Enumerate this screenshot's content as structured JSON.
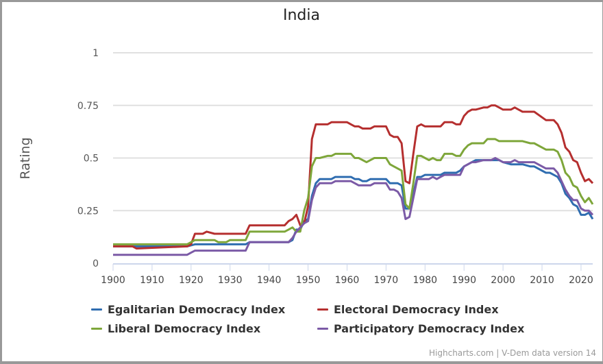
{
  "chart_data": {
    "type": "line",
    "title": "India",
    "xlabel": "",
    "ylabel": "Rating",
    "xlim": [
      1900,
      2023
    ],
    "ylim": [
      0,
      1
    ],
    "x_ticks": [
      "1900",
      "1910",
      "1920",
      "1930",
      "1940",
      "1950",
      "1960",
      "1970",
      "1980",
      "1990",
      "2000",
      "2010",
      "2020"
    ],
    "y_ticks": [
      "0",
      "0.25",
      "0.5",
      "0.75",
      "1"
    ],
    "grid": true,
    "legend_position": "bottom",
    "x": [
      1900,
      1905,
      1906,
      1919,
      1920,
      1921,
      1923,
      1924,
      1926,
      1927,
      1929,
      1930,
      1934,
      1935,
      1944,
      1945,
      1946,
      1947,
      1948,
      1949,
      1950,
      1951,
      1952,
      1953,
      1955,
      1956,
      1957,
      1960,
      1961,
      1962,
      1963,
      1964,
      1965,
      1966,
      1967,
      1970,
      1971,
      1972,
      1973,
      1974,
      1975,
      1976,
      1977,
      1978,
      1979,
      1980,
      1981,
      1982,
      1983,
      1984,
      1985,
      1987,
      1988,
      1989,
      1990,
      1991,
      1992,
      1993,
      1995,
      1996,
      1997,
      1998,
      1999,
      2000,
      2002,
      2003,
      2004,
      2005,
      2007,
      2008,
      2011,
      2012,
      2013,
      2014,
      2015,
      2016,
      2017,
      2018,
      2019,
      2020,
      2021,
      2022,
      2023
    ],
    "series": [
      {
        "name": "Egalitarian Democracy Index",
        "color": "#2f6db0",
        "values": [
          0.08,
          0.08,
          0.08,
          0.08,
          0.085,
          0.09,
          0.09,
          0.09,
          0.09,
          0.09,
          0.09,
          0.09,
          0.09,
          0.1,
          0.1,
          0.1,
          0.11,
          0.16,
          0.16,
          0.2,
          0.21,
          0.32,
          0.38,
          0.4,
          0.4,
          0.4,
          0.41,
          0.41,
          0.41,
          0.4,
          0.4,
          0.39,
          0.39,
          0.4,
          0.4,
          0.4,
          0.38,
          0.38,
          0.38,
          0.37,
          0.26,
          0.26,
          0.33,
          0.41,
          0.41,
          0.42,
          0.42,
          0.42,
          0.42,
          0.42,
          0.43,
          0.43,
          0.43,
          0.44,
          0.46,
          0.47,
          0.48,
          0.49,
          0.49,
          0.49,
          0.49,
          0.49,
          0.49,
          0.48,
          0.47,
          0.47,
          0.47,
          0.47,
          0.46,
          0.46,
          0.43,
          0.43,
          0.42,
          0.41,
          0.38,
          0.33,
          0.31,
          0.28,
          0.27,
          0.23,
          0.23,
          0.24,
          0.21
        ]
      },
      {
        "name": "Electoral Democracy Index",
        "color": "#b52f2f",
        "values": [
          0.08,
          0.08,
          0.07,
          0.08,
          0.09,
          0.14,
          0.14,
          0.15,
          0.14,
          0.14,
          0.14,
          0.14,
          0.14,
          0.18,
          0.18,
          0.2,
          0.21,
          0.23,
          0.18,
          0.19,
          0.27,
          0.59,
          0.66,
          0.66,
          0.66,
          0.67,
          0.67,
          0.67,
          0.66,
          0.65,
          0.65,
          0.64,
          0.64,
          0.64,
          0.65,
          0.65,
          0.61,
          0.6,
          0.6,
          0.57,
          0.39,
          0.38,
          0.52,
          0.65,
          0.66,
          0.65,
          0.65,
          0.65,
          0.65,
          0.65,
          0.67,
          0.67,
          0.66,
          0.66,
          0.7,
          0.72,
          0.73,
          0.73,
          0.74,
          0.74,
          0.75,
          0.75,
          0.74,
          0.73,
          0.73,
          0.74,
          0.73,
          0.72,
          0.72,
          0.72,
          0.68,
          0.68,
          0.68,
          0.66,
          0.62,
          0.55,
          0.53,
          0.49,
          0.48,
          0.43,
          0.39,
          0.4,
          0.38
        ]
      },
      {
        "name": "Liberal Democracy Index",
        "color": "#7ea63a",
        "values": [
          0.09,
          0.09,
          0.09,
          0.09,
          0.1,
          0.11,
          0.11,
          0.11,
          0.11,
          0.1,
          0.1,
          0.11,
          0.11,
          0.15,
          0.15,
          0.16,
          0.17,
          0.15,
          0.15,
          0.25,
          0.31,
          0.46,
          0.5,
          0.5,
          0.51,
          0.51,
          0.52,
          0.52,
          0.52,
          0.5,
          0.5,
          0.49,
          0.48,
          0.49,
          0.5,
          0.5,
          0.47,
          0.46,
          0.45,
          0.44,
          0.28,
          0.26,
          0.38,
          0.51,
          0.51,
          0.5,
          0.49,
          0.5,
          0.49,
          0.49,
          0.52,
          0.52,
          0.51,
          0.51,
          0.54,
          0.56,
          0.57,
          0.57,
          0.57,
          0.59,
          0.59,
          0.59,
          0.58,
          0.58,
          0.58,
          0.58,
          0.58,
          0.58,
          0.57,
          0.57,
          0.54,
          0.54,
          0.54,
          0.53,
          0.49,
          0.43,
          0.41,
          0.37,
          0.36,
          0.32,
          0.29,
          0.31,
          0.28
        ]
      },
      {
        "name": "Participatory Democracy Index",
        "color": "#7b5aa6",
        "values": [
          0.04,
          0.04,
          0.04,
          0.04,
          0.05,
          0.06,
          0.06,
          0.06,
          0.06,
          0.06,
          0.06,
          0.06,
          0.06,
          0.1,
          0.1,
          0.1,
          0.12,
          0.15,
          0.17,
          0.19,
          0.2,
          0.3,
          0.36,
          0.38,
          0.38,
          0.38,
          0.39,
          0.39,
          0.39,
          0.38,
          0.37,
          0.37,
          0.37,
          0.37,
          0.38,
          0.38,
          0.35,
          0.35,
          0.34,
          0.31,
          0.21,
          0.22,
          0.31,
          0.4,
          0.4,
          0.4,
          0.4,
          0.41,
          0.4,
          0.41,
          0.42,
          0.42,
          0.42,
          0.42,
          0.46,
          0.47,
          0.48,
          0.48,
          0.49,
          0.49,
          0.49,
          0.5,
          0.49,
          0.48,
          0.48,
          0.49,
          0.48,
          0.48,
          0.48,
          0.48,
          0.45,
          0.45,
          0.45,
          0.43,
          0.39,
          0.35,
          0.32,
          0.3,
          0.3,
          0.26,
          0.25,
          0.25,
          0.23
        ]
      }
    ]
  },
  "credits": "Highcharts.com | V-Dem data version 14"
}
